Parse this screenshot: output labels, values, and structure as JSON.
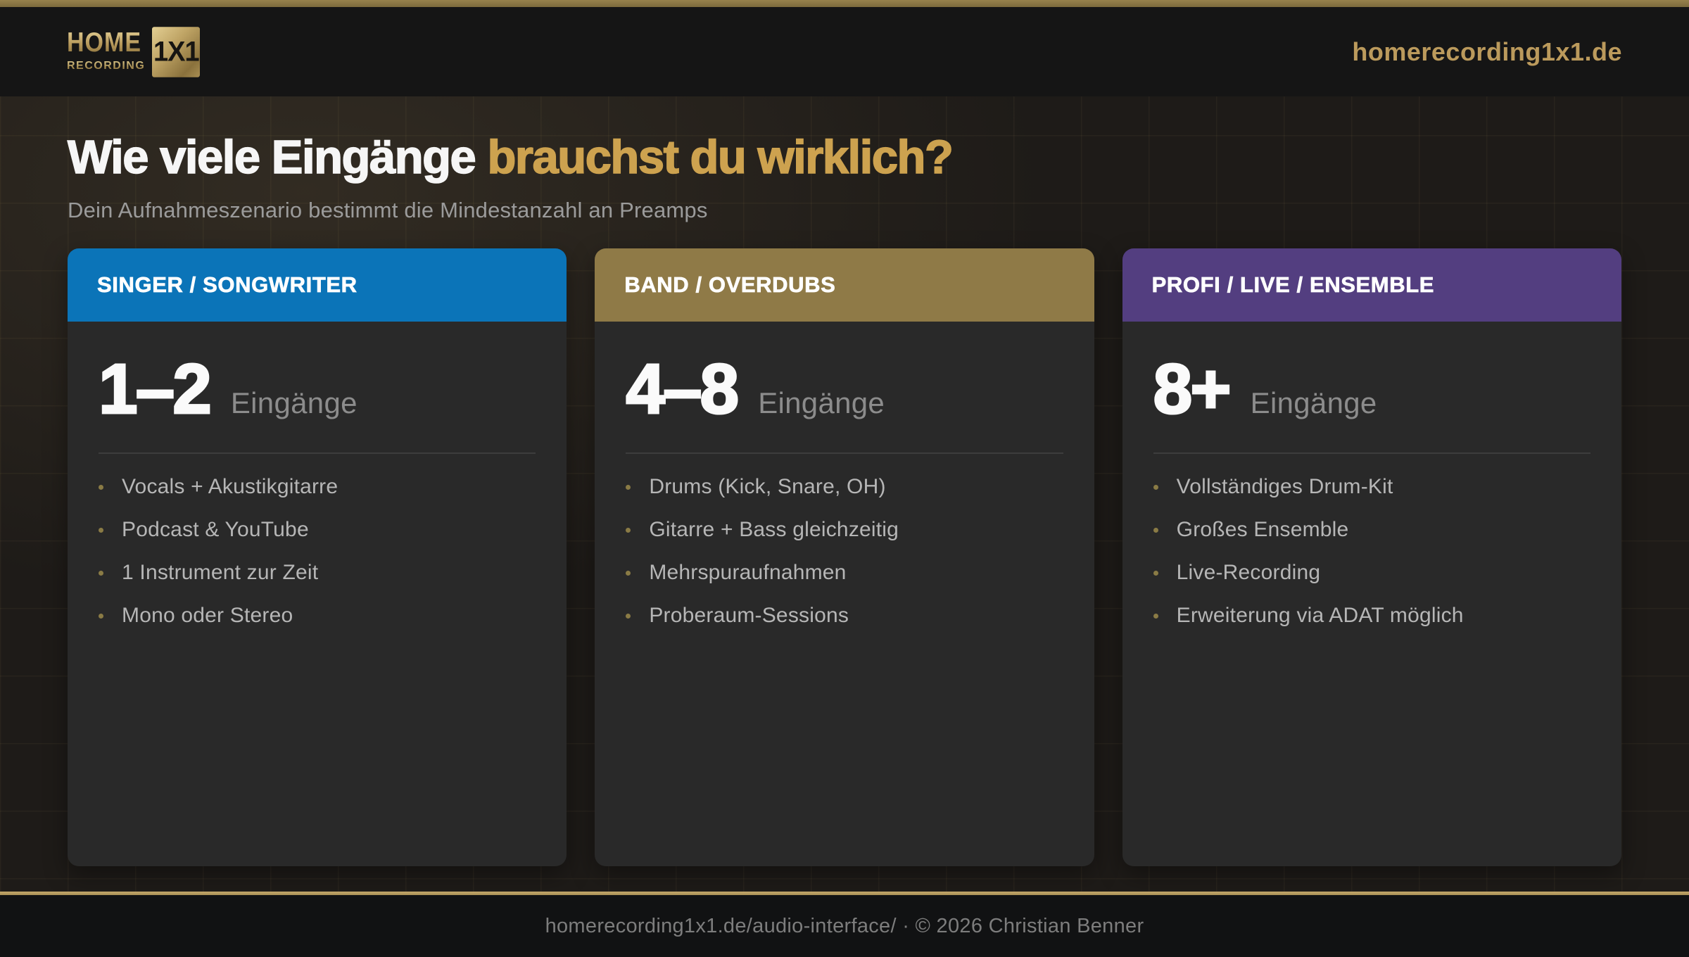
{
  "header": {
    "logo": {
      "line1": "HOME",
      "line2": "RECORDING",
      "badge": "1X1"
    },
    "domain": "homerecording1x1.de"
  },
  "hero": {
    "title_white": "Wie viele Eingänge",
    "title_gold": "brauchst du wirklich?",
    "subtitle": "Dein Aufnahmeszenario bestimmt die Mindestanzahl an Preamps"
  },
  "cards": [
    {
      "label": "SINGER / SONGWRITER",
      "color": "#0b74b8",
      "number": "1–2",
      "unit": "Eingänge",
      "items": [
        "Vocals + Akustikgitarre",
        "Podcast & YouTube",
        "1 Instrument zur Zeit",
        "Mono oder Stereo"
      ]
    },
    {
      "label": "BAND / OVERDUBS",
      "color": "#8f7a47",
      "number": "4–8",
      "unit": "Eingänge",
      "items": [
        "Drums (Kick, Snare, OH)",
        "Gitarre + Bass gleichzeitig",
        "Mehrspuraufnahmen",
        "Proberaum-Sessions"
      ]
    },
    {
      "label": "PROFI / LIVE / ENSEMBLE",
      "color": "#533e80",
      "number": "8+",
      "unit": "Eingänge",
      "items": [
        "Vollständiges Drum-Kit",
        "Großes Ensemble",
        "Live-Recording",
        "Erweiterung via ADAT möglich"
      ]
    }
  ],
  "footer": {
    "text": "homerecording1x1.de/audio-interface/ · © 2026 Christian Benner"
  },
  "colors": {
    "accent_gold": "#bb9a5c",
    "title_gold": "#cda24f",
    "blue": "#0b74b8",
    "gold": "#8f7a47",
    "purple": "#533e80",
    "page_bg": "#1e1b18",
    "card_bg": "#292929"
  }
}
